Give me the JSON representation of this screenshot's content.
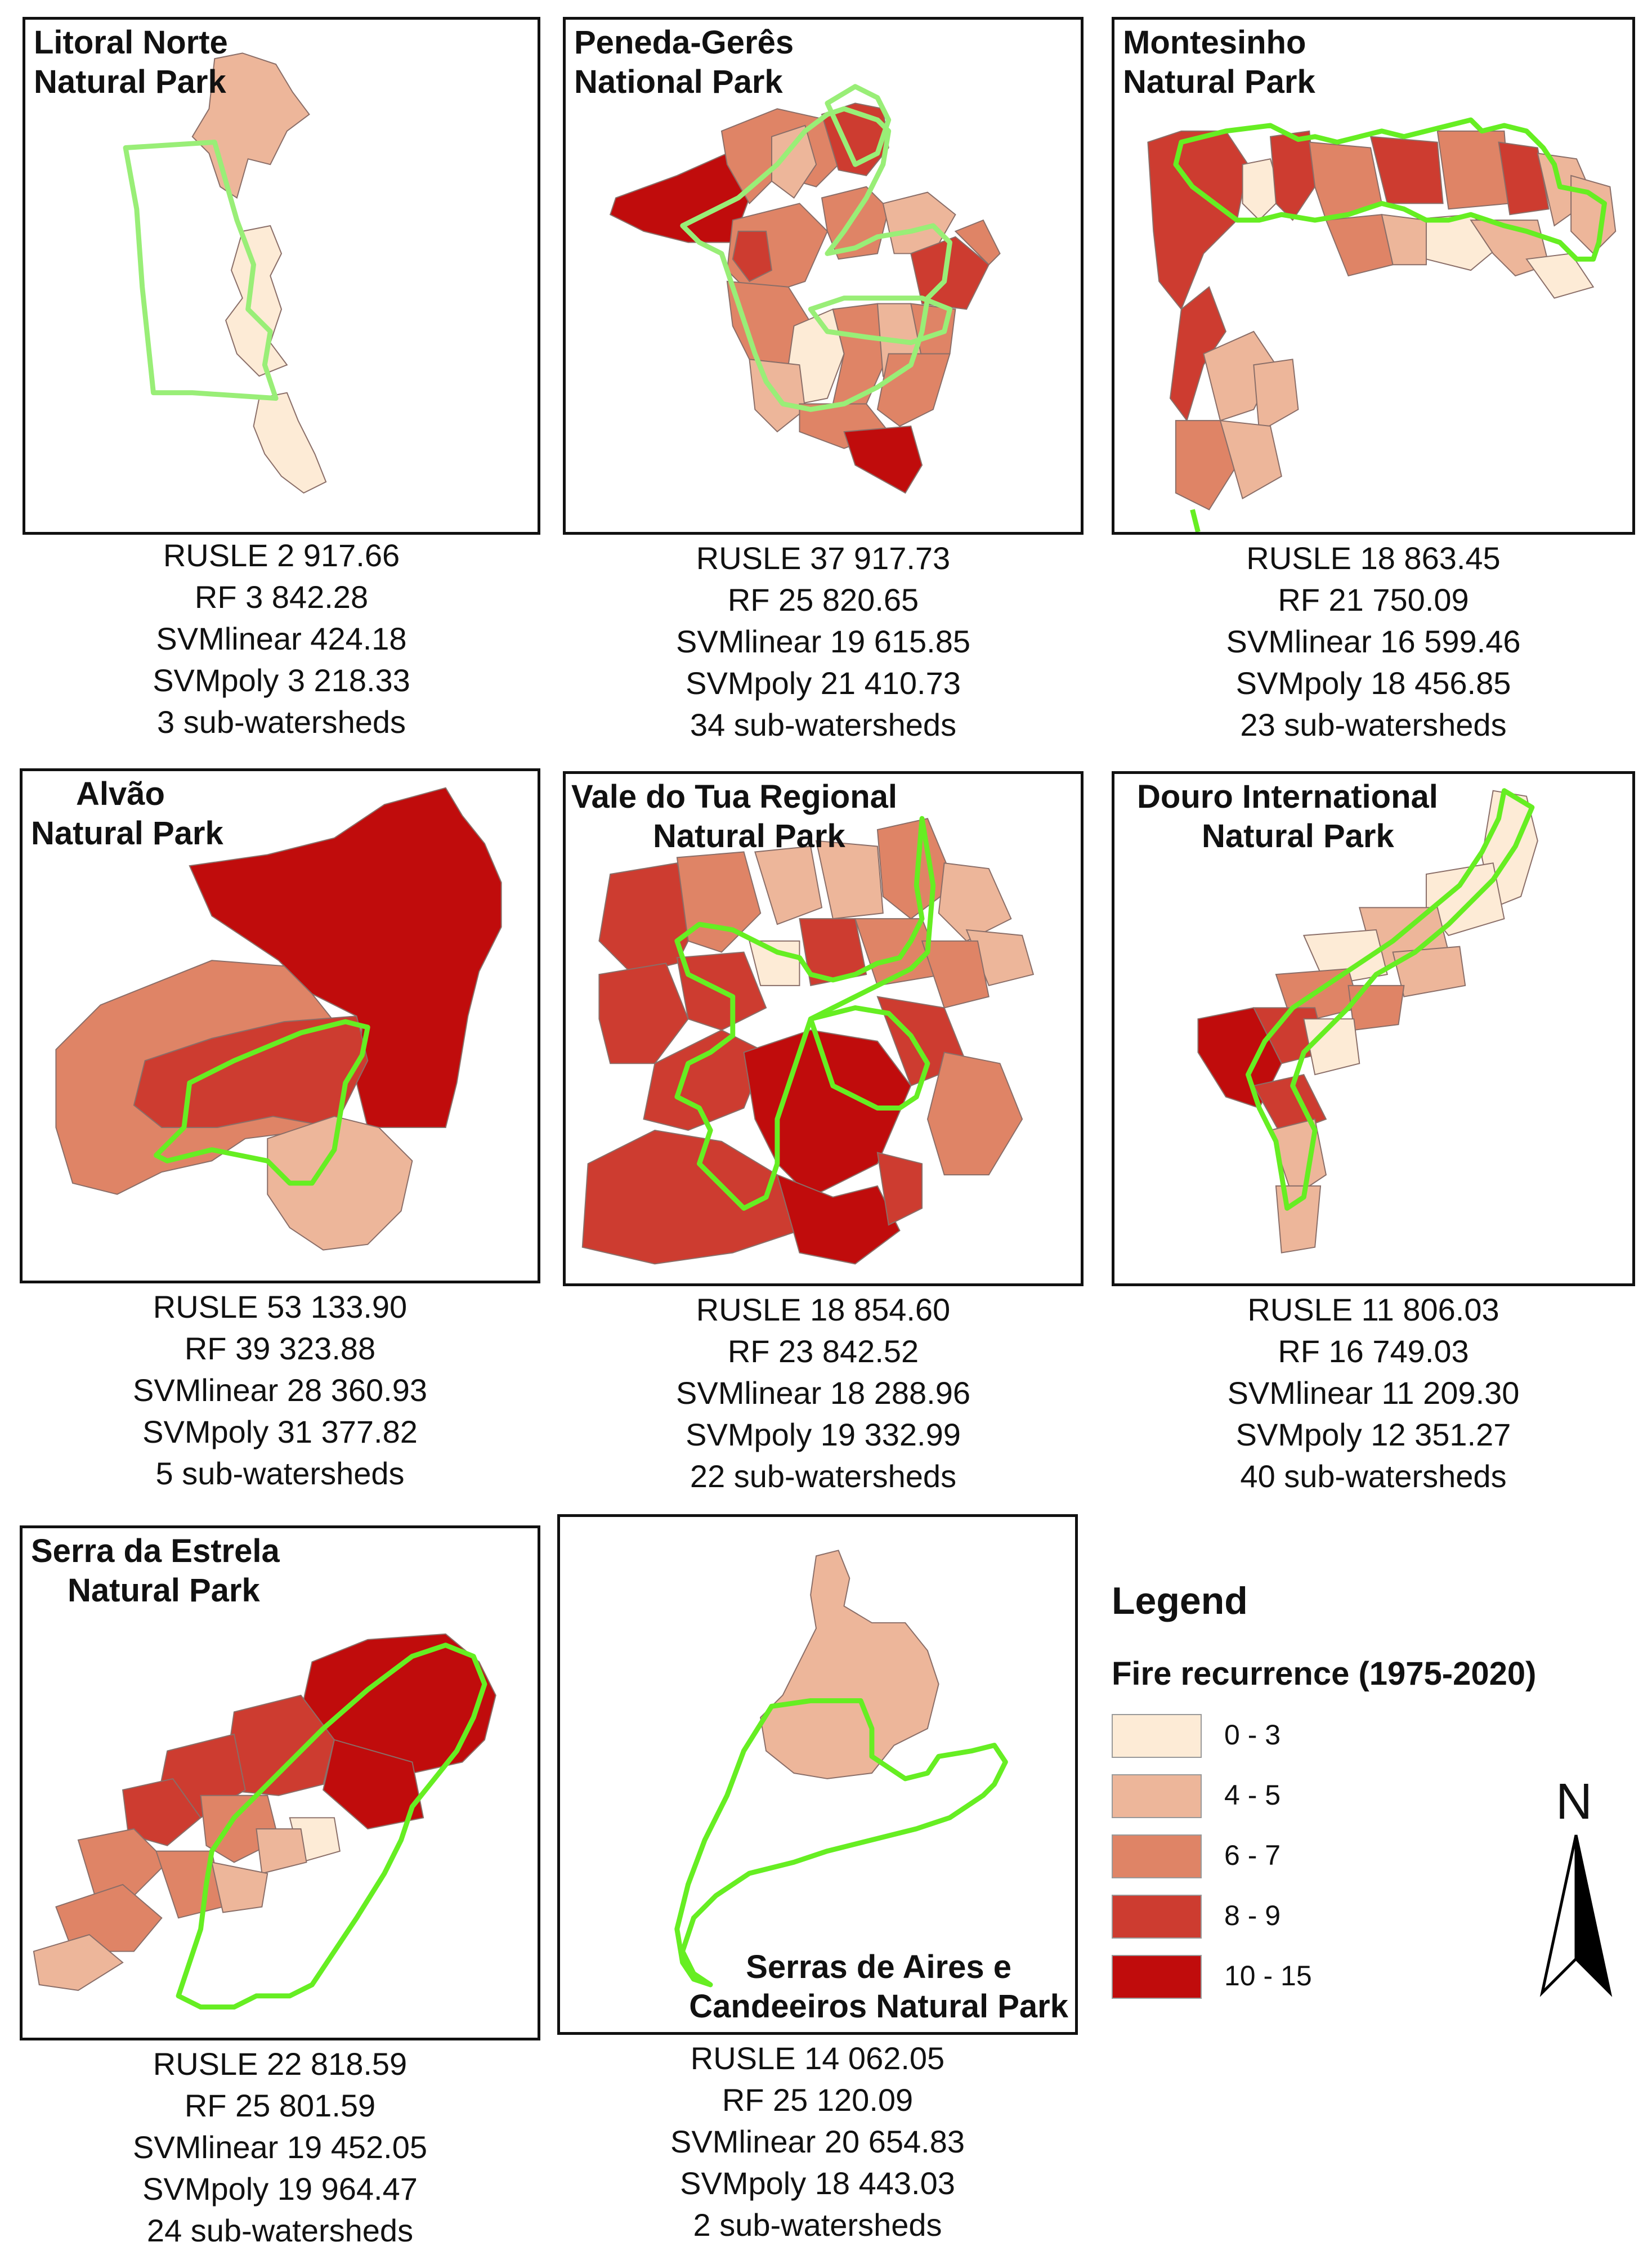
{
  "colors": {
    "c0_3": "#fdebd6",
    "c4_5": "#edb69a",
    "c6_7": "#df8466",
    "c8_9": "#cd3c30",
    "c10_15": "#c00c0c",
    "boundary": "#66ee22"
  },
  "panels": [
    {
      "id": "litoral",
      "title_l1": "Litoral Norte",
      "title_l2": "Natural Park",
      "rusle": "RUSLE  2 917.66",
      "rf": "RF  3 842.28",
      "svml": "SVMlinear  424.18",
      "svmp": "SVMpoly  3 218.33",
      "subs": "3 sub-watersheds"
    },
    {
      "id": "peneda",
      "title_l1": "Peneda-Gerês",
      "title_l2": "National Park",
      "rusle": "RUSLE  37 917.73",
      "rf": "RF  25 820.65",
      "svml": "SVMlinear  19 615.85",
      "svmp": "SVMpoly  21 410.73",
      "subs": "34 sub-watersheds"
    },
    {
      "id": "montesinho",
      "title_l1": "Montesinho",
      "title_l2": "Natural Park",
      "rusle": "RUSLE  18 863.45",
      "rf": "RF  21 750.09",
      "svml": "SVMlinear  16 599.46",
      "svmp": "SVMpoly  18 456.85",
      "subs": "23 sub-watersheds"
    },
    {
      "id": "alvao",
      "title_l1": "Alvão",
      "title_l2": "Natural Park",
      "rusle": "RUSLE  53 133.90",
      "rf": "RF  39 323.88",
      "svml": "SVMlinear  28 360.93",
      "svmp": "SVMpoly  31 377.82",
      "subs": "5 sub-watersheds"
    },
    {
      "id": "tua",
      "title_l1": "Vale do Tua Regional",
      "title_l2": "Natural Park",
      "rusle": "RUSLE    18 854.60",
      "rf": "RF    23 842.52",
      "svml": "SVMlinear    18 288.96",
      "svmp": "SVMpoly    19 332.99",
      "subs": "22 sub-watersheds"
    },
    {
      "id": "douro",
      "title_l1": "Douro International",
      "title_l2": "Natural Park",
      "rusle": "RUSLE    11 806.03",
      "rf": "RF    16 749.03",
      "svml": "SVMlinear    11 209.30",
      "svmp": "SVMpoly    12 351.27",
      "subs": "40 sub-watersheds"
    },
    {
      "id": "estrela",
      "title_l1": "Serra da Estrela",
      "title_l2": "Natural Park",
      "rusle": "RUSLE    22 818.59",
      "rf": "RF    25 801.59",
      "svml": "SVMlinear    19 452.05",
      "svmp": "SVMpoly    19 964.47",
      "subs": "24 sub-watersheds"
    },
    {
      "id": "aires",
      "title_l1": "Serras de Aires e",
      "title_l2": "Candeeiros Natural Park",
      "rusle": "RUSLE  14 062.05",
      "rf": "RF  25 120.09",
      "svml": "SVMlinear  20 654.83",
      "svmp": "SVMpoly 18 443.03",
      "subs": "2 sub-watersheds"
    }
  ],
  "legend": {
    "title": "Legend",
    "subtitle": "Fire recurrence (1975-2020)",
    "classes": [
      "0 - 3",
      "4 - 5",
      "6 - 7",
      "8 - 9",
      "10 - 15"
    ]
  },
  "north_arrow": {
    "letter": "N",
    "icon": "north-arrow-icon"
  }
}
